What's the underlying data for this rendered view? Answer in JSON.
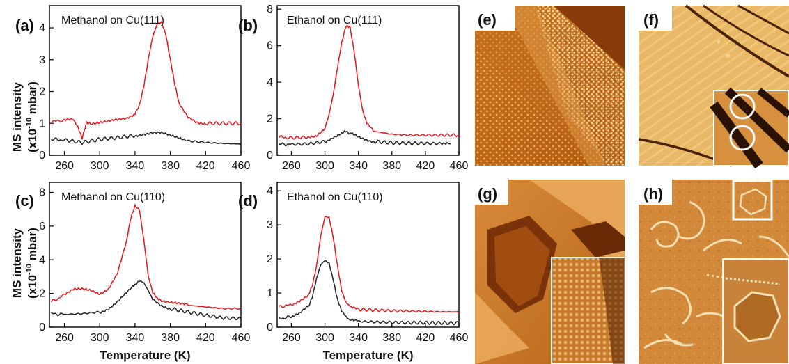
{
  "colors": {
    "red_series": "#e8141b",
    "black_series": "#222222"
  },
  "chart_data": [
    {
      "panel": "(a)",
      "title": "Methanol on Cu(111)",
      "type": "line",
      "xlabel": "",
      "ylabel": "MS intensity (x10⁻¹⁰ mbar)",
      "xlim": [
        243,
        460
      ],
      "ylim": [
        0,
        4.7
      ],
      "xticks": [
        260,
        300,
        340,
        380,
        420,
        460
      ],
      "yticks": [
        0,
        1,
        2,
        3,
        4
      ],
      "series": [
        {
          "color": "#e8141b",
          "x": [
            245,
            260,
            270,
            275,
            280,
            285,
            290,
            300,
            310,
            320,
            330,
            340,
            345,
            350,
            355,
            360,
            365,
            370,
            375,
            380,
            385,
            390,
            400,
            410,
            420,
            440,
            460
          ],
          "y": [
            1.05,
            1.1,
            1.15,
            0.9,
            0.5,
            1.0,
            1.0,
            1.02,
            1.05,
            1.1,
            1.15,
            1.3,
            1.6,
            2.2,
            3.0,
            3.7,
            4.1,
            4.2,
            3.8,
            3.0,
            2.2,
            1.6,
            1.2,
            1.05,
            1.0,
            1.0,
            1.0
          ]
        },
        {
          "color": "#222222",
          "x": [
            245,
            260,
            280,
            300,
            320,
            340,
            350,
            360,
            370,
            380,
            390,
            400,
            420,
            440,
            460
          ],
          "y": [
            0.5,
            0.48,
            0.4,
            0.5,
            0.55,
            0.62,
            0.68,
            0.72,
            0.7,
            0.6,
            0.52,
            0.45,
            0.4,
            0.37,
            0.35
          ]
        }
      ]
    },
    {
      "panel": "(b)",
      "title": "Ethanol on Cu(111)",
      "type": "line",
      "xlabel": "",
      "ylabel": "",
      "xlim": [
        243,
        460
      ],
      "ylim": [
        0,
        8.2
      ],
      "xticks": [
        260,
        300,
        340,
        380,
        420,
        460
      ],
      "yticks": [
        0,
        2,
        4,
        6,
        8
      ],
      "series": [
        {
          "color": "#e8141b",
          "x": [
            245,
            260,
            280,
            290,
            300,
            305,
            310,
            315,
            320,
            325,
            330,
            335,
            340,
            345,
            350,
            360,
            380,
            400,
            420,
            440,
            460
          ],
          "y": [
            1.0,
            0.95,
            1.0,
            1.1,
            1.5,
            2.2,
            3.3,
            4.8,
            6.2,
            7.1,
            7.0,
            5.6,
            3.8,
            2.5,
            1.8,
            1.3,
            1.15,
            1.1,
            1.1,
            1.1,
            1.1
          ]
        },
        {
          "color": "#222222",
          "x": [
            245,
            260,
            280,
            300,
            310,
            320,
            325,
            330,
            340,
            350,
            360,
            380,
            400,
            420,
            440,
            450
          ],
          "y": [
            0.6,
            0.6,
            0.62,
            0.75,
            0.95,
            1.15,
            1.3,
            1.2,
            1.0,
            0.85,
            0.75,
            0.68,
            0.66,
            0.65,
            0.64,
            0.63
          ]
        }
      ]
    },
    {
      "panel": "(c)",
      "title": "Methanol on Cu(110)",
      "type": "line",
      "xlabel": "Temperature (K)",
      "ylabel": "MS intensity (x10⁻¹⁰ mbar)",
      "xlim": [
        243,
        460
      ],
      "ylim": [
        0,
        8.6
      ],
      "xticks": [
        260,
        300,
        340,
        380,
        420,
        460
      ],
      "yticks": [
        0,
        2,
        4,
        6,
        8
      ],
      "series": [
        {
          "color": "#e8141b",
          "x": [
            245,
            260,
            270,
            280,
            290,
            300,
            310,
            320,
            330,
            335,
            340,
            345,
            350,
            355,
            360,
            365,
            370,
            380,
            390,
            400,
            420,
            440,
            460
          ],
          "y": [
            1.5,
            1.9,
            2.2,
            2.25,
            2.2,
            2.0,
            2.3,
            3.2,
            5.0,
            6.4,
            7.2,
            7.0,
            5.2,
            3.0,
            2.0,
            1.7,
            1.6,
            1.5,
            1.4,
            1.3,
            1.2,
            1.1,
            1.1
          ]
        },
        {
          "color": "#222222",
          "x": [
            245,
            260,
            280,
            300,
            310,
            320,
            330,
            340,
            345,
            350,
            355,
            360,
            370,
            380,
            400,
            420,
            440,
            460
          ],
          "y": [
            0.8,
            0.75,
            0.8,
            0.9,
            1.1,
            1.5,
            2.0,
            2.5,
            2.7,
            2.6,
            2.2,
            1.7,
            1.3,
            1.1,
            0.9,
            0.7,
            0.55,
            0.5
          ]
        }
      ]
    },
    {
      "panel": "(d)",
      "title": "Ethanol on Cu(110)",
      "type": "line",
      "xlabel": "Temperature (K)",
      "ylabel": "",
      "xlim": [
        243,
        460
      ],
      "ylim": [
        0,
        4.25
      ],
      "xticks": [
        260,
        300,
        340,
        380,
        420,
        460
      ],
      "yticks": [
        0,
        1,
        2,
        3,
        4
      ],
      "series": [
        {
          "color": "#e8141b",
          "x": [
            245,
            260,
            270,
            280,
            285,
            290,
            295,
            300,
            305,
            310,
            315,
            320,
            325,
            330,
            340,
            360,
            380,
            400,
            420,
            440,
            460
          ],
          "y": [
            0.6,
            0.65,
            0.75,
            0.9,
            1.2,
            1.8,
            2.7,
            3.25,
            3.2,
            2.6,
            1.8,
            1.1,
            0.75,
            0.6,
            0.52,
            0.5,
            0.48,
            0.47,
            0.46,
            0.45,
            0.45
          ]
        },
        {
          "color": "#222222",
          "x": [
            245,
            260,
            270,
            280,
            285,
            290,
            295,
            300,
            305,
            310,
            315,
            320,
            325,
            330,
            340,
            360,
            380,
            400,
            420,
            440,
            460
          ],
          "y": [
            0.25,
            0.3,
            0.4,
            0.6,
            0.9,
            1.4,
            1.8,
            1.95,
            1.9,
            1.4,
            0.8,
            0.45,
            0.3,
            0.22,
            0.17,
            0.15,
            0.14,
            0.13,
            0.13,
            0.12,
            0.12
          ]
        }
      ]
    }
  ],
  "images": [
    {
      "label": "(e)"
    },
    {
      "label": "(f)"
    },
    {
      "label": "(g)"
    },
    {
      "label": "(h)"
    }
  ]
}
